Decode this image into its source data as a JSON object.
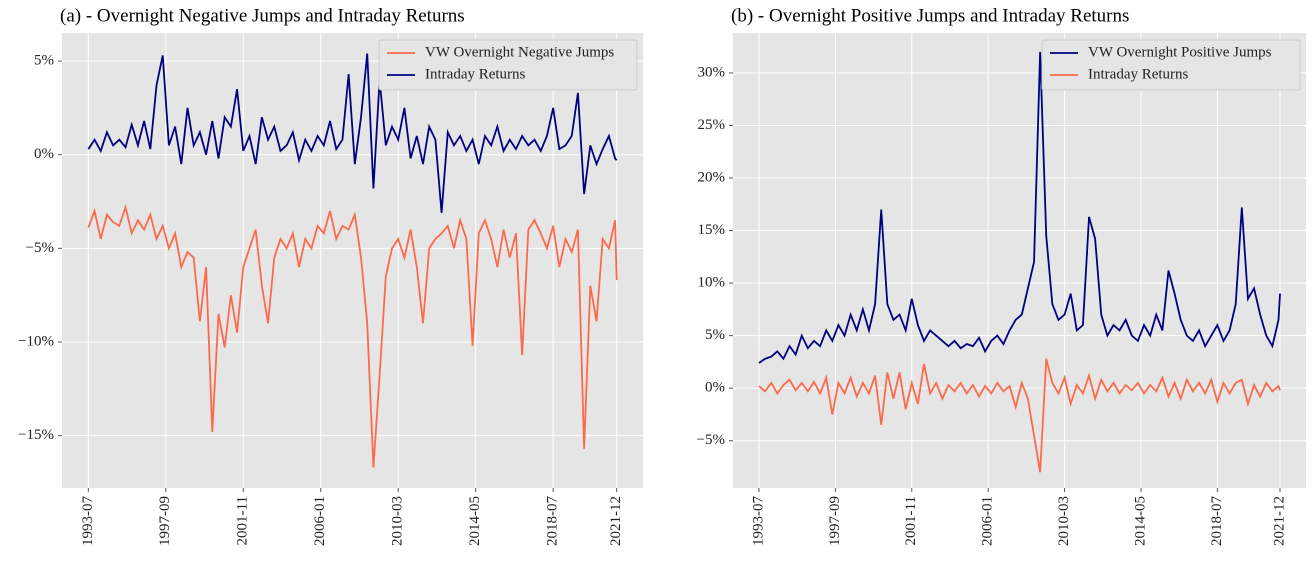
{
  "chart_data": [
    {
      "type": "line",
      "title": "(a) - Overnight Negative Jumps and Intraday Returns",
      "x": [
        "1993-07",
        "1993-11",
        "1994-03",
        "1994-07",
        "1994-11",
        "1995-03",
        "1995-07",
        "1995-11",
        "1996-03",
        "1996-07",
        "1996-11",
        "1997-03",
        "1997-07",
        "1997-11",
        "1998-03",
        "1998-07",
        "1998-11",
        "1999-03",
        "1999-07",
        "1999-11",
        "2000-03",
        "2000-07",
        "2000-11",
        "2001-03",
        "2001-07",
        "2001-11",
        "2002-03",
        "2002-07",
        "2002-11",
        "2003-03",
        "2003-07",
        "2003-11",
        "2004-03",
        "2004-07",
        "2004-11",
        "2005-03",
        "2005-07",
        "2005-11",
        "2006-03",
        "2006-07",
        "2006-11",
        "2007-03",
        "2007-07",
        "2007-11",
        "2008-03",
        "2008-07",
        "2008-11",
        "2009-03",
        "2009-07",
        "2009-11",
        "2010-03",
        "2010-07",
        "2010-11",
        "2011-03",
        "2011-07",
        "2011-11",
        "2012-03",
        "2012-07",
        "2012-11",
        "2013-03",
        "2013-07",
        "2013-11",
        "2014-03",
        "2014-07",
        "2014-11",
        "2015-03",
        "2015-07",
        "2015-11",
        "2016-03",
        "2016-07",
        "2016-11",
        "2017-03",
        "2017-07",
        "2017-11",
        "2018-03",
        "2018-07",
        "2018-11",
        "2019-03",
        "2019-07",
        "2019-11",
        "2020-03",
        "2020-07",
        "2020-11",
        "2021-03",
        "2021-07",
        "2021-11",
        "2021-12"
      ],
      "series": [
        {
          "name": "VW Overnight Negative Jumps",
          "color": "#fc6a4b",
          "values": [
            -3.9,
            -3.0,
            -4.5,
            -3.2,
            -3.6,
            -3.8,
            -2.8,
            -4.2,
            -3.5,
            -4.0,
            -3.2,
            -4.5,
            -3.8,
            -5.0,
            -4.2,
            -6.0,
            -5.2,
            -5.5,
            -8.9,
            -6.0,
            -14.8,
            -8.5,
            -10.3,
            -7.5,
            -9.5,
            -6.0,
            -5.0,
            -4.0,
            -7.0,
            -9.0,
            -5.5,
            -4.5,
            -5.0,
            -4.2,
            -6.0,
            -4.5,
            -5.0,
            -3.8,
            -4.2,
            -3.0,
            -4.5,
            -3.8,
            -4.0,
            -3.2,
            -5.5,
            -9.0,
            -16.7,
            -11.8,
            -6.5,
            -5.0,
            -4.5,
            -5.5,
            -4.0,
            -6.0,
            -9.0,
            -5.0,
            -4.5,
            -4.2,
            -3.8,
            -5.0,
            -3.5,
            -4.5,
            -10.2,
            -4.2,
            -3.5,
            -4.5,
            -6.0,
            -4.0,
            -5.5,
            -4.2,
            -10.7,
            -4.0,
            -3.5,
            -4.2,
            -5.0,
            -3.8,
            -6.0,
            -4.5,
            -5.2,
            -4.0,
            -15.7,
            -7.0,
            -8.9,
            -4.5,
            -5.0,
            -3.5,
            -6.7
          ]
        },
        {
          "name": "Intraday Returns",
          "color": "#000080",
          "values": [
            0.3,
            0.8,
            0.2,
            1.2,
            0.5,
            0.8,
            0.4,
            1.6,
            0.5,
            1.8,
            0.3,
            3.7,
            5.3,
            0.5,
            1.5,
            -0.5,
            2.5,
            0.5,
            1.2,
            0.0,
            1.8,
            -0.2,
            2.0,
            1.5,
            3.5,
            0.2,
            1.0,
            -0.5,
            2.0,
            0.8,
            1.5,
            0.2,
            0.5,
            1.2,
            -0.3,
            0.8,
            0.2,
            1.0,
            0.5,
            1.8,
            0.3,
            0.8,
            4.3,
            -0.5,
            2.0,
            5.4,
            -1.8,
            4.0,
            0.5,
            1.5,
            0.8,
            2.5,
            -0.2,
            1.0,
            -0.5,
            1.5,
            0.8,
            -3.1,
            1.2,
            0.5,
            1.0,
            0.2,
            0.8,
            -0.5,
            1.0,
            0.5,
            1.5,
            0.2,
            0.8,
            0.3,
            1.0,
            0.5,
            0.8,
            0.2,
            1.0,
            2.5,
            0.3,
            0.5,
            1.0,
            3.3,
            -2.1,
            0.5,
            -0.5,
            0.3,
            1.0,
            -0.2,
            -0.3
          ]
        }
      ],
      "xlim": [
        "1992-02",
        "2023-05"
      ],
      "xticks": [
        "1993-07",
        "1997-09",
        "2001-11",
        "2006-01",
        "2010-03",
        "2014-05",
        "2018-07",
        "2021-12"
      ],
      "ylim": [
        -17.8,
        6.5
      ],
      "yticks": [
        {
          "value": -15,
          "label": "−15%"
        },
        {
          "value": -10,
          "label": "−10%"
        },
        {
          "value": -5,
          "label": "−5%"
        },
        {
          "value": 0,
          "label": "0%"
        },
        {
          "value": 5,
          "label": "5%"
        }
      ],
      "grid": true,
      "legend": "upper right"
    },
    {
      "type": "line",
      "title": "(b) - Overnight Positive Jumps and Intraday Returns",
      "x": [
        "1993-07",
        "1993-11",
        "1994-03",
        "1994-07",
        "1994-11",
        "1995-03",
        "1995-07",
        "1995-11",
        "1996-03",
        "1996-07",
        "1996-11",
        "1997-03",
        "1997-07",
        "1997-11",
        "1998-03",
        "1998-07",
        "1998-11",
        "1999-03",
        "1999-07",
        "1999-11",
        "2000-03",
        "2000-07",
        "2000-11",
        "2001-03",
        "2001-07",
        "2001-11",
        "2002-03",
        "2002-07",
        "2002-11",
        "2003-03",
        "2003-07",
        "2003-11",
        "2004-03",
        "2004-07",
        "2004-11",
        "2005-03",
        "2005-07",
        "2005-11",
        "2006-03",
        "2006-07",
        "2006-11",
        "2007-03",
        "2007-07",
        "2007-11",
        "2008-03",
        "2008-07",
        "2008-11",
        "2009-03",
        "2009-07",
        "2009-11",
        "2010-03",
        "2010-07",
        "2010-11",
        "2011-03",
        "2011-07",
        "2011-11",
        "2012-03",
        "2012-07",
        "2012-11",
        "2013-03",
        "2013-07",
        "2013-11",
        "2014-03",
        "2014-07",
        "2014-11",
        "2015-03",
        "2015-07",
        "2015-11",
        "2016-03",
        "2016-07",
        "2016-11",
        "2017-03",
        "2017-07",
        "2017-11",
        "2018-03",
        "2018-07",
        "2018-11",
        "2019-03",
        "2019-07",
        "2019-11",
        "2020-03",
        "2020-07",
        "2020-11",
        "2021-03",
        "2021-07",
        "2021-11",
        "2021-12"
      ],
      "series": [
        {
          "name": "VW Overnight Positive Jumps",
          "color": "#000080",
          "values": [
            2.4,
            2.8,
            3.0,
            3.5,
            2.8,
            4.0,
            3.2,
            5.0,
            3.8,
            4.5,
            4.0,
            5.5,
            4.5,
            6.0,
            5.0,
            7.0,
            5.5,
            7.5,
            5.5,
            8.0,
            17.0,
            8.0,
            6.5,
            7.0,
            5.5,
            8.5,
            6.0,
            4.5,
            5.5,
            5.0,
            4.5,
            4.0,
            4.5,
            3.8,
            4.2,
            4.0,
            4.8,
            3.5,
            4.5,
            5.0,
            4.2,
            5.5,
            6.5,
            7.0,
            9.5,
            12.0,
            32.0,
            14.5,
            8.0,
            6.5,
            7.0,
            9.0,
            5.5,
            6.0,
            16.3,
            14.2,
            7.0,
            5.0,
            6.0,
            5.5,
            6.5,
            5.0,
            4.5,
            6.0,
            5.0,
            7.0,
            5.5,
            11.2,
            9.0,
            6.5,
            5.0,
            4.5,
            5.5,
            4.0,
            5.0,
            6.0,
            4.5,
            5.5,
            8.0,
            17.2,
            8.5,
            9.5,
            7.0,
            5.0,
            4.0,
            6.5,
            9.0
          ]
        },
        {
          "name": "Intraday Returns",
          "color": "#fc6a4b",
          "values": [
            0.2,
            -0.3,
            0.5,
            -0.5,
            0.3,
            0.8,
            -0.2,
            0.5,
            -0.3,
            0.6,
            -0.5,
            1.0,
            -2.5,
            0.5,
            -0.5,
            1.0,
            -0.8,
            0.5,
            -0.5,
            1.2,
            -3.5,
            1.5,
            -1.0,
            1.5,
            -2.0,
            0.5,
            -1.5,
            2.3,
            -0.5,
            0.5,
            -1.0,
            0.3,
            -0.3,
            0.5,
            -0.5,
            0.3,
            -0.8,
            0.2,
            -0.5,
            0.5,
            -0.3,
            0.2,
            -1.8,
            0.5,
            -1.0,
            -4.5,
            -8.0,
            2.8,
            0.5,
            -0.5,
            1.0,
            -1.5,
            0.3,
            -0.5,
            1.2,
            -1.0,
            0.8,
            -0.3,
            0.5,
            -0.5,
            0.3,
            -0.2,
            0.5,
            -0.5,
            0.3,
            -0.3,
            1.0,
            -0.8,
            0.5,
            -1.0,
            0.8,
            -0.3,
            0.5,
            -0.5,
            0.8,
            -1.3,
            0.5,
            -0.5,
            0.5,
            0.8,
            -1.5,
            0.3,
            -0.8,
            0.5,
            -0.3,
            0.2,
            -0.2
          ]
        }
      ],
      "xlim": [
        "1992-02",
        "2023-05"
      ],
      "xticks": [
        "1993-07",
        "1997-09",
        "2001-11",
        "2006-01",
        "2010-03",
        "2014-05",
        "2018-07",
        "2021-12"
      ],
      "ylim": [
        -9.5,
        33.8
      ],
      "yticks": [
        {
          "value": -5,
          "label": "−5%"
        },
        {
          "value": 0,
          "label": "0%"
        },
        {
          "value": 5,
          "label": "5%"
        },
        {
          "value": 10,
          "label": "10%"
        },
        {
          "value": 15,
          "label": "15%"
        },
        {
          "value": 20,
          "label": "20%"
        },
        {
          "value": 25,
          "label": "25%"
        },
        {
          "value": 30,
          "label": "30%"
        }
      ],
      "grid": true,
      "legend": "upper right"
    }
  ]
}
